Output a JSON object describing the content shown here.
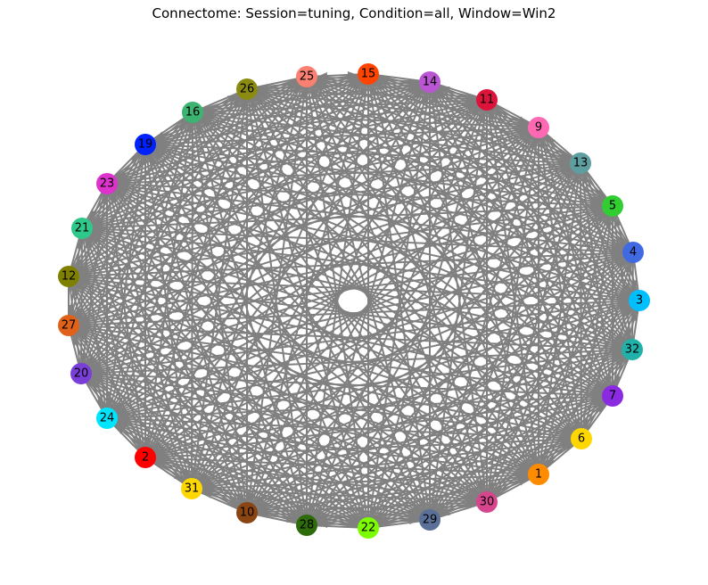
{
  "title": "Connectome: Session=tuning, Condition=all, Window=Win2",
  "edge_color": "#808080",
  "nodes": [
    {
      "label": "15",
      "color": "#ff4500"
    },
    {
      "label": "14",
      "color": "#ba55d3"
    },
    {
      "label": "11",
      "color": "#dc143c"
    },
    {
      "label": "9",
      "color": "#ff69b4"
    },
    {
      "label": "13",
      "color": "#5f9ea0"
    },
    {
      "label": "5",
      "color": "#32cd32"
    },
    {
      "label": "4",
      "color": "#4169e1"
    },
    {
      "label": "3",
      "color": "#00bfff"
    },
    {
      "label": "32",
      "color": "#20b2aa"
    },
    {
      "label": "7",
      "color": "#8a2be2"
    },
    {
      "label": "6",
      "color": "#ffd700"
    },
    {
      "label": "1",
      "color": "#ff8c00"
    },
    {
      "label": "30",
      "color": "#d6458e"
    },
    {
      "label": "29",
      "color": "#5b7098"
    },
    {
      "label": "22",
      "color": "#7cfc00"
    },
    {
      "label": "28",
      "color": "#2e6b0a"
    },
    {
      "label": "10",
      "color": "#8b4513"
    },
    {
      "label": "31",
      "color": "#ffd700"
    },
    {
      "label": "2",
      "color": "#ff0000"
    },
    {
      "label": "24",
      "color": "#00e5ff"
    },
    {
      "label": "20",
      "color": "#7b3fd9"
    },
    {
      "label": "27",
      "color": "#e0611a"
    },
    {
      "label": "12",
      "color": "#808000"
    },
    {
      "label": "21",
      "color": "#2ec98a"
    },
    {
      "label": "23",
      "color": "#dd33cc"
    },
    {
      "label": "19",
      "color": "#0022ff"
    },
    {
      "label": "16",
      "color": "#3cb371"
    },
    {
      "label": "26",
      "color": "#8b8b12"
    },
    {
      "label": "25",
      "color": "#fa8072"
    }
  ]
}
